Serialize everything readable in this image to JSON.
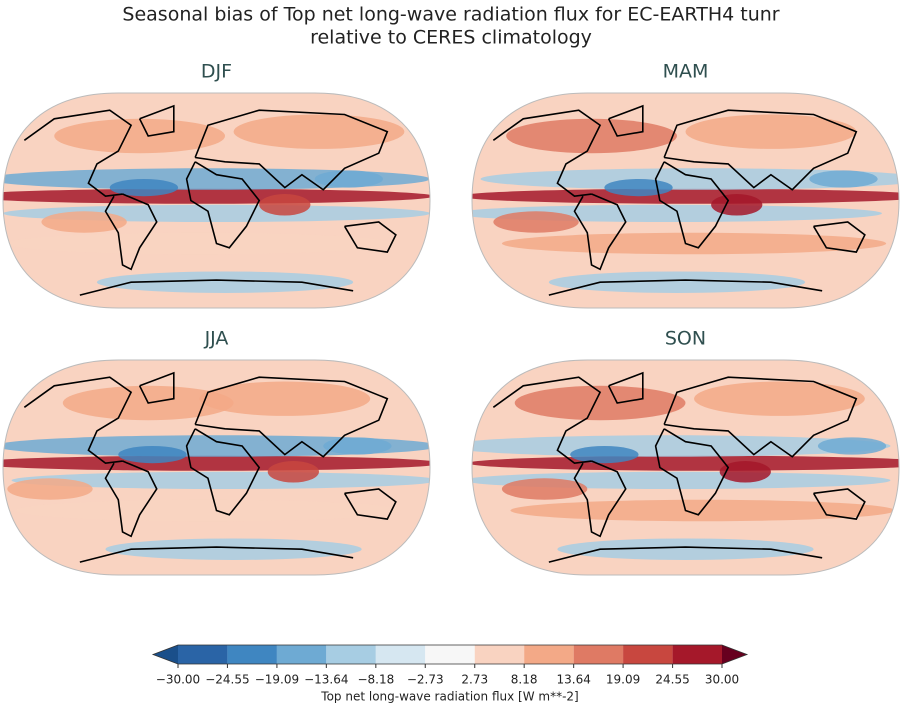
{
  "chart_data": {
    "type": "contour-map",
    "title": "Seasonal bias of Top net long-wave radiation flux for EC-EARTH4 tunr",
    "subtitle": "relative to CERES climatology",
    "panels": [
      {
        "title": "DJF"
      },
      {
        "title": "MAM"
      },
      {
        "title": "JJA"
      },
      {
        "title": "SON"
      }
    ],
    "colorbar": {
      "label": "Top net long-wave radiation flux [W m**-2]",
      "xlim": [
        -30,
        30
      ],
      "extend": "both",
      "ticks": [
        {
          "value": -30,
          "label": "−30.00"
        },
        {
          "value": -24.55,
          "label": "−24.55"
        },
        {
          "value": -19.09,
          "label": "−19.09"
        },
        {
          "value": -13.64,
          "label": "−13.64"
        },
        {
          "value": -8.18,
          "label": "−8.18"
        },
        {
          "value": -2.73,
          "label": "−2.73"
        },
        {
          "value": 2.73,
          "label": "2.73"
        },
        {
          "value": 8.18,
          "label": "8.18"
        },
        {
          "value": 13.64,
          "label": "13.64"
        },
        {
          "value": 19.09,
          "label": "19.09"
        },
        {
          "value": 24.55,
          "label": "24.55"
        },
        {
          "value": 30,
          "label": "30.00"
        }
      ],
      "colors": [
        "#1a4f8a",
        "#2a64a6",
        "#3f86c1",
        "#6eaad3",
        "#a7cde3",
        "#d6e7f1",
        "#f7f7f7",
        "#f9d3c1",
        "#f3a987",
        "#df7a64",
        "#c8473f",
        "#a5182a",
        "#67001f"
      ]
    }
  }
}
